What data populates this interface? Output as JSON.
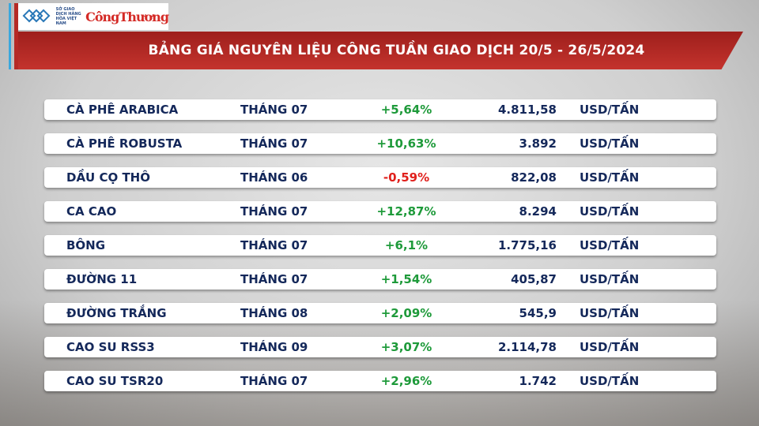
{
  "logo": {
    "exchange": "SỞ GIAO DỊCH HÀNG HÓA VIỆT NAM",
    "brand": "CôngThương"
  },
  "title": "BẢNG GIÁ NGUYÊN LIỆU CÔNG TUẦN GIAO DỊCH 20/5 - 26/5/2024",
  "colors": {
    "up": "#1e9a3a",
    "down": "#e0201c",
    "text": "#14285a",
    "banner": "#b52a25"
  },
  "rows": [
    {
      "name": "CÀ PHÊ ARABICA",
      "month": "THÁNG 07",
      "change": "+5,64%",
      "price": "4.811,58",
      "unit": "USD/TẤN",
      "dir": "up"
    },
    {
      "name": "CÀ PHÊ ROBUSTA",
      "month": "THÁNG 07",
      "change": "+10,63%",
      "price": "3.892",
      "unit": "USD/TẤN",
      "dir": "up"
    },
    {
      "name": "DẦU CỌ THÔ",
      "month": "THÁNG 06",
      "change": "-0,59%",
      "price": "822,08",
      "unit": "USD/TẤN",
      "dir": "down"
    },
    {
      "name": "CA CAO",
      "month": "THÁNG 07",
      "change": "+12,87%",
      "price": "8.294",
      "unit": "USD/TẤN",
      "dir": "up"
    },
    {
      "name": "BÔNG",
      "month": "THÁNG 07",
      "change": "+6,1%",
      "price": "1.775,16",
      "unit": "USD/TẤN",
      "dir": "up"
    },
    {
      "name": "ĐƯỜNG 11",
      "month": "THÁNG 07",
      "change": "+1,54%",
      "price": "405,87",
      "unit": "USD/TẤN",
      "dir": "up"
    },
    {
      "name": "ĐƯỜNG TRẮNG",
      "month": "THÁNG 08",
      "change": "+2,09%",
      "price": "545,9",
      "unit": "USD/TẤN",
      "dir": "up"
    },
    {
      "name": "CAO SU RSS3",
      "month": "THÁNG 09",
      "change": "+3,07%",
      "price": "2.114,78",
      "unit": "USD/TẤN",
      "dir": "up"
    },
    {
      "name": "CAO SU TSR20",
      "month": "THÁNG 07",
      "change": "+2,96%",
      "price": "1.742",
      "unit": "USD/TẤN",
      "dir": "up"
    }
  ]
}
